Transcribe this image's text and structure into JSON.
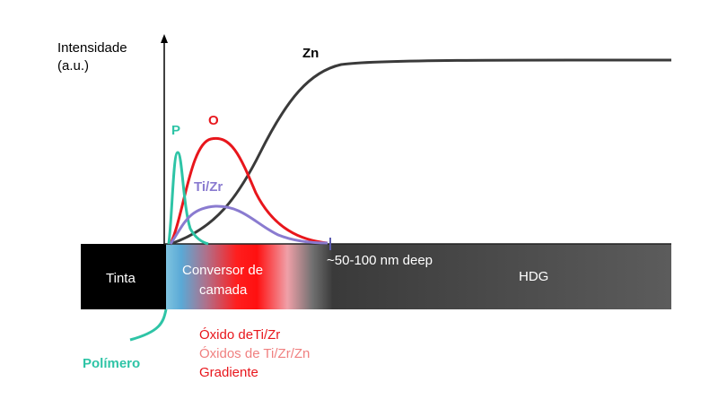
{
  "axis": {
    "label_line1": "Intensidade",
    "label_line2": "(a.u.)"
  },
  "curves": {
    "zn": "Zn",
    "o": "O",
    "p": "P",
    "tizr": "Ti/Zr"
  },
  "layers": {
    "tinta": "Tinta",
    "conversor_line1": "Conversor de",
    "conversor_line2": "camada",
    "depth": "~50-100 nm deep",
    "hdg": "HDG"
  },
  "notes": {
    "polimero": "Polímero",
    "oxido": "Óxido deTi/Zr",
    "oxidos": "Óxidos de Ti/Zr/Zn",
    "gradiente": "Gradiente"
  }
}
